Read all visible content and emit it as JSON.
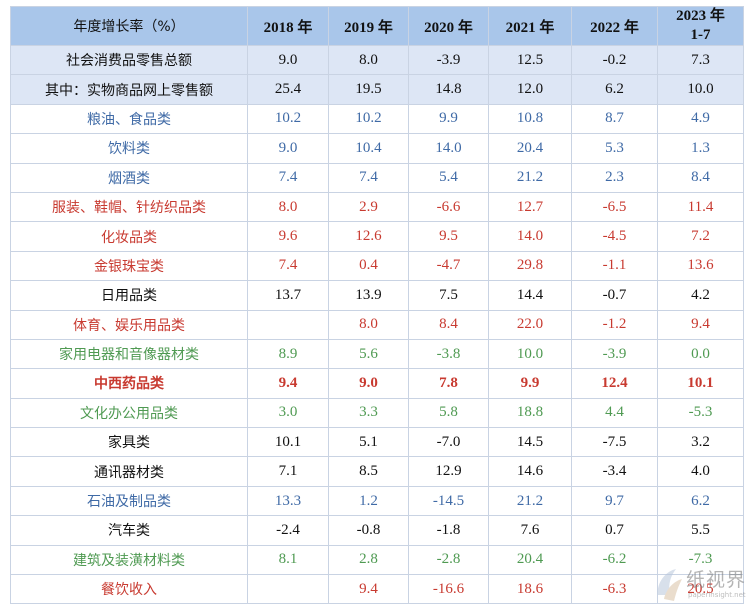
{
  "header": {
    "label": "年度增长率（%）",
    "years": [
      "2018 年",
      "2019 年",
      "2020 年",
      "2021 年",
      "2022 年"
    ],
    "last_year_line1": "2023 年",
    "last_year_line2": "1-7"
  },
  "rows": [
    {
      "label": "社会消费品零售总额",
      "values": [
        "9.0",
        "8.0",
        "-3.9",
        "12.5",
        "-0.2",
        "7.3"
      ]
    },
    {
      "label": "其中：实物商品网上零售额",
      "values": [
        "25.4",
        "19.5",
        "14.8",
        "12.0",
        "6.2",
        "10.0"
      ]
    },
    {
      "label": "粮油、食品类",
      "values": [
        "10.2",
        "10.2",
        "9.9",
        "10.8",
        "8.7",
        "4.9"
      ]
    },
    {
      "label": "饮料类",
      "values": [
        "9.0",
        "10.4",
        "14.0",
        "20.4",
        "5.3",
        "1.3"
      ]
    },
    {
      "label": "烟酒类",
      "values": [
        "7.4",
        "7.4",
        "5.4",
        "21.2",
        "2.3",
        "8.4"
      ]
    },
    {
      "label": "服装、鞋帽、针纺织品类",
      "values": [
        "8.0",
        "2.9",
        "-6.6",
        "12.7",
        "-6.5",
        "11.4"
      ]
    },
    {
      "label": "化妆品类",
      "values": [
        "9.6",
        "12.6",
        "9.5",
        "14.0",
        "-4.5",
        "7.2"
      ]
    },
    {
      "label": "金银珠宝类",
      "values": [
        "7.4",
        "0.4",
        "-4.7",
        "29.8",
        "-1.1",
        "13.6"
      ]
    },
    {
      "label": "日用品类",
      "values": [
        "13.7",
        "13.9",
        "7.5",
        "14.4",
        "-0.7",
        "4.2"
      ]
    },
    {
      "label": "体育、娱乐用品类",
      "values": [
        "",
        "8.0",
        "8.4",
        "22.0",
        "-1.2",
        "9.4"
      ]
    },
    {
      "label": "家用电器和音像器材类",
      "values": [
        "8.9",
        "5.6",
        "-3.8",
        "10.0",
        "-3.9",
        "0.0"
      ]
    },
    {
      "label": "中西药品类",
      "values": [
        "9.4",
        "9.0",
        "7.8",
        "9.9",
        "12.4",
        "10.1"
      ]
    },
    {
      "label": "文化办公用品类",
      "values": [
        "3.0",
        "3.3",
        "5.8",
        "18.8",
        "4.4",
        "-5.3"
      ]
    },
    {
      "label": "家具类",
      "values": [
        "10.1",
        "5.1",
        "-7.0",
        "14.5",
        "-7.5",
        "3.2"
      ]
    },
    {
      "label": "通讯器材类",
      "values": [
        "7.1",
        "8.5",
        "12.9",
        "14.6",
        "-3.4",
        "4.0"
      ]
    },
    {
      "label": "石油及制品类",
      "values": [
        "13.3",
        "1.2",
        "-14.5",
        "21.2",
        "9.7",
        "6.2"
      ]
    },
    {
      "label": "汽车类",
      "values": [
        "-2.4",
        "-0.8",
        "-1.8",
        "7.6",
        "0.7",
        "5.5"
      ]
    },
    {
      "label": "建筑及装潢材料类",
      "values": [
        "8.1",
        "2.8",
        "-2.8",
        "20.4",
        "-6.2",
        "-7.3"
      ]
    },
    {
      "label": "餐饮收入",
      "values": [
        "",
        "9.4",
        "-16.6",
        "18.6",
        "-6.3",
        "20.5"
      ]
    }
  ],
  "colors": {
    "header_bg": "#a9c6ea",
    "summary_bg": "#dde6f5",
    "blue": "#3f6aa6",
    "red": "#c83a30",
    "green": "#4f9a52",
    "black": "#111111"
  },
  "watermark": {
    "text": "纸视界",
    "url": "paperinsight.net"
  }
}
